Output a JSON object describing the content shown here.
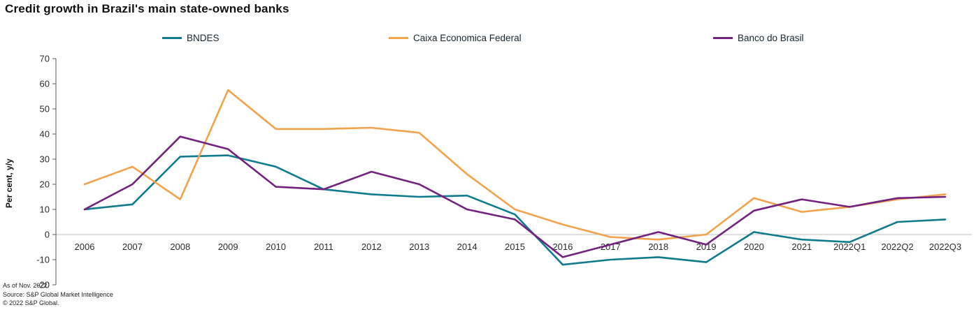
{
  "title": "Credit growth in Brazil's main state-owned banks",
  "footer": {
    "line1": "As of Nov. 2022.",
    "line2": "Source: S&P Global Market Intelligence",
    "line3": "© 2022 S&P Global."
  },
  "chart_data": {
    "type": "line",
    "title": "Credit growth in Brazil's main state-owned banks",
    "xlabel": "",
    "ylabel": "Per cent, y/y",
    "ylim": [
      -20,
      70
    ],
    "ytick_step": 10,
    "grid": false,
    "legend_position": "top",
    "categories": [
      "2006",
      "2007",
      "2008",
      "2009",
      "2010",
      "2011",
      "2012",
      "2013",
      "2014",
      "2015",
      "2016",
      "2017",
      "2018",
      "2019",
      "2020",
      "2021",
      "2022Q1",
      "2022Q2",
      "2022Q3"
    ],
    "series": [
      {
        "name": "BNDES",
        "color": "#0f7b8e",
        "values": [
          10,
          12,
          31,
          31.5,
          27,
          18,
          16,
          15,
          15.5,
          8,
          -12,
          -10,
          -9,
          -11,
          1,
          -2,
          -3,
          5,
          6
        ]
      },
      {
        "name": "Caixa Economica Federal",
        "color": "#f2a24c",
        "values": [
          20,
          27,
          14,
          57.5,
          42,
          42,
          42.5,
          40.5,
          24,
          10,
          4,
          -1,
          -2,
          0,
          14.5,
          9,
          11,
          14,
          16
        ]
      },
      {
        "name": "Banco do Brasil",
        "color": "#73217f",
        "values": [
          10,
          20,
          39,
          34,
          19,
          18,
          25,
          20,
          10,
          6,
          -9,
          -4,
          1,
          -4,
          9.5,
          14,
          11,
          14.5,
          15
        ]
      }
    ]
  }
}
